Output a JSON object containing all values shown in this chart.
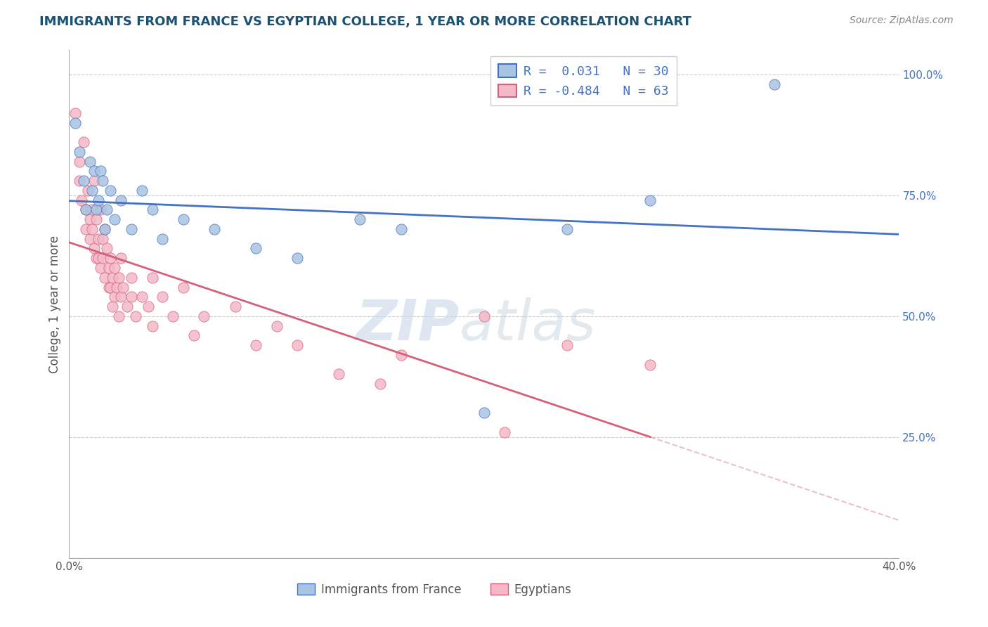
{
  "title": "IMMIGRANTS FROM FRANCE VS EGYPTIAN COLLEGE, 1 YEAR OR MORE CORRELATION CHART",
  "source_text": "Source: ZipAtlas.com",
  "ylabel": "College, 1 year or more",
  "xlim": [
    0.0,
    0.4
  ],
  "ylim": [
    0.0,
    1.05
  ],
  "ytick_positions": [
    0.0,
    0.25,
    0.5,
    0.75,
    1.0
  ],
  "ytick_labels": [
    "",
    "25.0%",
    "50.0%",
    "75.0%",
    "100.0%"
  ],
  "xtick_positions": [
    0.0,
    0.04,
    0.08,
    0.12,
    0.16,
    0.2,
    0.24,
    0.28,
    0.32,
    0.36,
    0.4
  ],
  "xtick_labels": [
    "0.0%",
    "",
    "",
    "",
    "",
    "",
    "",
    "",
    "",
    "",
    "40.0%"
  ],
  "color_france": "#a8c4e0",
  "color_egypt": "#f4b8c8",
  "line_color_france": "#4472c4",
  "line_color_egypt": "#d4607a",
  "background_color": "#ffffff",
  "grid_color": "#cccccc",
  "france_r": 0.031,
  "france_n": 30,
  "egypt_r": -0.484,
  "egypt_n": 63,
  "france_points": [
    [
      0.003,
      0.9
    ],
    [
      0.005,
      0.84
    ],
    [
      0.007,
      0.78
    ],
    [
      0.008,
      0.72
    ],
    [
      0.01,
      0.82
    ],
    [
      0.011,
      0.76
    ],
    [
      0.012,
      0.8
    ],
    [
      0.013,
      0.72
    ],
    [
      0.014,
      0.74
    ],
    [
      0.015,
      0.8
    ],
    [
      0.016,
      0.78
    ],
    [
      0.017,
      0.68
    ],
    [
      0.018,
      0.72
    ],
    [
      0.02,
      0.76
    ],
    [
      0.022,
      0.7
    ],
    [
      0.025,
      0.74
    ],
    [
      0.03,
      0.68
    ],
    [
      0.035,
      0.76
    ],
    [
      0.04,
      0.72
    ],
    [
      0.045,
      0.66
    ],
    [
      0.055,
      0.7
    ],
    [
      0.07,
      0.68
    ],
    [
      0.09,
      0.64
    ],
    [
      0.11,
      0.62
    ],
    [
      0.14,
      0.7
    ],
    [
      0.16,
      0.68
    ],
    [
      0.2,
      0.3
    ],
    [
      0.24,
      0.68
    ],
    [
      0.28,
      0.74
    ],
    [
      0.34,
      0.98
    ]
  ],
  "egypt_points": [
    [
      0.003,
      0.92
    ],
    [
      0.005,
      0.82
    ],
    [
      0.005,
      0.78
    ],
    [
      0.006,
      0.74
    ],
    [
      0.007,
      0.86
    ],
    [
      0.008,
      0.72
    ],
    [
      0.008,
      0.68
    ],
    [
      0.009,
      0.76
    ],
    [
      0.01,
      0.7
    ],
    [
      0.01,
      0.66
    ],
    [
      0.011,
      0.72
    ],
    [
      0.011,
      0.68
    ],
    [
      0.012,
      0.64
    ],
    [
      0.012,
      0.78
    ],
    [
      0.013,
      0.62
    ],
    [
      0.013,
      0.7
    ],
    [
      0.014,
      0.66
    ],
    [
      0.014,
      0.62
    ],
    [
      0.015,
      0.72
    ],
    [
      0.015,
      0.6
    ],
    [
      0.016,
      0.66
    ],
    [
      0.016,
      0.62
    ],
    [
      0.017,
      0.68
    ],
    [
      0.017,
      0.58
    ],
    [
      0.018,
      0.64
    ],
    [
      0.019,
      0.56
    ],
    [
      0.019,
      0.6
    ],
    [
      0.02,
      0.56
    ],
    [
      0.02,
      0.62
    ],
    [
      0.021,
      0.52
    ],
    [
      0.021,
      0.58
    ],
    [
      0.022,
      0.54
    ],
    [
      0.022,
      0.6
    ],
    [
      0.023,
      0.56
    ],
    [
      0.024,
      0.5
    ],
    [
      0.024,
      0.58
    ],
    [
      0.025,
      0.62
    ],
    [
      0.025,
      0.54
    ],
    [
      0.026,
      0.56
    ],
    [
      0.028,
      0.52
    ],
    [
      0.03,
      0.58
    ],
    [
      0.03,
      0.54
    ],
    [
      0.032,
      0.5
    ],
    [
      0.035,
      0.54
    ],
    [
      0.038,
      0.52
    ],
    [
      0.04,
      0.58
    ],
    [
      0.04,
      0.48
    ],
    [
      0.045,
      0.54
    ],
    [
      0.05,
      0.5
    ],
    [
      0.055,
      0.56
    ],
    [
      0.06,
      0.46
    ],
    [
      0.065,
      0.5
    ],
    [
      0.08,
      0.52
    ],
    [
      0.09,
      0.44
    ],
    [
      0.1,
      0.48
    ],
    [
      0.11,
      0.44
    ],
    [
      0.13,
      0.38
    ],
    [
      0.15,
      0.36
    ],
    [
      0.16,
      0.42
    ],
    [
      0.2,
      0.5
    ],
    [
      0.21,
      0.26
    ],
    [
      0.24,
      0.44
    ],
    [
      0.28,
      0.4
    ]
  ],
  "watermark_zip": "ZIP",
  "watermark_atlas": "atlas",
  "legend_text": [
    "R =  0.031   N = 30",
    "R = -0.484   N = 63"
  ]
}
